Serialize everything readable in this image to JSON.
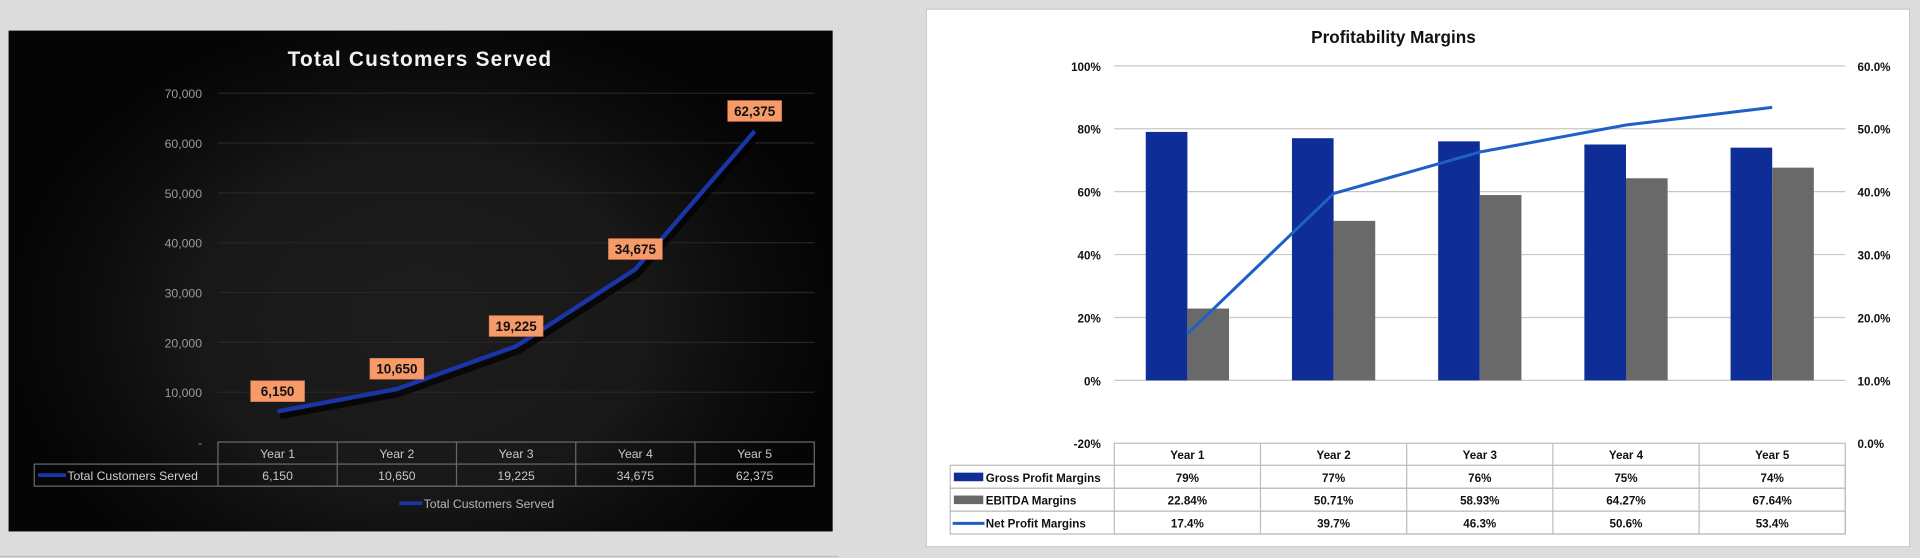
{
  "chart_data": [
    {
      "type": "line",
      "title": "Total Customers Served",
      "categories": [
        "Year 1",
        "Year 2",
        "Year 3",
        "Year 4",
        "Year 5"
      ],
      "series": [
        {
          "name": "Total Customers Served",
          "values": [
            6150,
            10650,
            19225,
            34675,
            62375
          ],
          "labels": [
            "6,150",
            "10,650",
            "19,225",
            "34,675",
            "62,375"
          ]
        }
      ],
      "yticks": [
        "-",
        "10,000",
        "20,000",
        "30,000",
        "40,000",
        "50,000",
        "60,000",
        "70,000"
      ],
      "ylim": [
        0,
        70000
      ],
      "grid": true,
      "data_table": true,
      "legend": "bottom",
      "colors": {
        "line": "#1a35a8",
        "label_bg": "#f79a6a",
        "background": "#0a0a0a"
      }
    },
    {
      "type": "bar",
      "title": "Profitability Margins",
      "categories": [
        "Year 1",
        "Year 2",
        "Year 3",
        "Year 4",
        "Year 5"
      ],
      "series": [
        {
          "name": "Gross Profit Margins",
          "kind": "bar",
          "axis": "left",
          "values": [
            79,
            77,
            76,
            75,
            74
          ],
          "labels": [
            "79%",
            "77%",
            "76%",
            "75%",
            "74%"
          ],
          "color": "#0f2d96"
        },
        {
          "name": "EBITDA Margins",
          "kind": "bar",
          "axis": "left",
          "values": [
            22.84,
            50.71,
            58.93,
            64.27,
            67.64
          ],
          "labels": [
            "22.84%",
            "50.71%",
            "58.93%",
            "64.27%",
            "67.64%"
          ],
          "color": "#696969"
        },
        {
          "name": "Net Profit Margins",
          "kind": "line",
          "axis": "right",
          "values": [
            17.4,
            39.7,
            46.3,
            50.6,
            53.4
          ],
          "labels": [
            "17.4%",
            "39.7%",
            "46.3%",
            "50.6%",
            "53.4%"
          ],
          "color": "#1f5fc8"
        }
      ],
      "yticks_left": [
        "-20%",
        "0%",
        "20%",
        "40%",
        "60%",
        "80%",
        "100%"
      ],
      "ylim_left": [
        -20,
        100
      ],
      "yticks_right": [
        "0.0%",
        "10.0%",
        "20.0%",
        "30.0%",
        "40.0%",
        "50.0%",
        "60.0%"
      ],
      "ylim_right": [
        0,
        60
      ],
      "grid": true,
      "data_table": true
    }
  ]
}
